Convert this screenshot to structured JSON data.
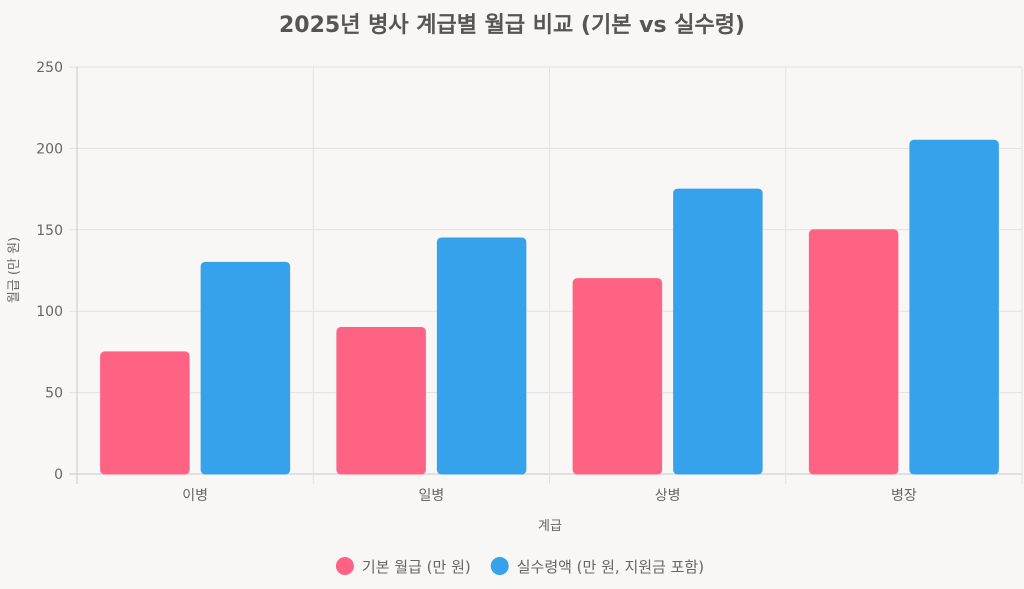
{
  "chart_data": {
    "type": "bar",
    "title": "2025년 병사 계급별 월급 비교 (기본 vs 실수령)",
    "xlabel": "계급",
    "ylabel": "월급 (만 원)",
    "categories": [
      "이병",
      "일병",
      "상병",
      "병장"
    ],
    "ylim": [
      0,
      250
    ],
    "yticks": [
      0,
      50,
      100,
      150,
      200,
      250
    ],
    "grid": true,
    "legend_position": "bottom",
    "series": [
      {
        "name": "기본 월급 (만 원)",
        "values": [
          75,
          90,
          120,
          150
        ],
        "color": "#ff6384"
      },
      {
        "name": "실수령액 (만 원, 지원금 포함)",
        "values": [
          130,
          145,
          175,
          205
        ],
        "color": "#36a2eb"
      }
    ]
  }
}
